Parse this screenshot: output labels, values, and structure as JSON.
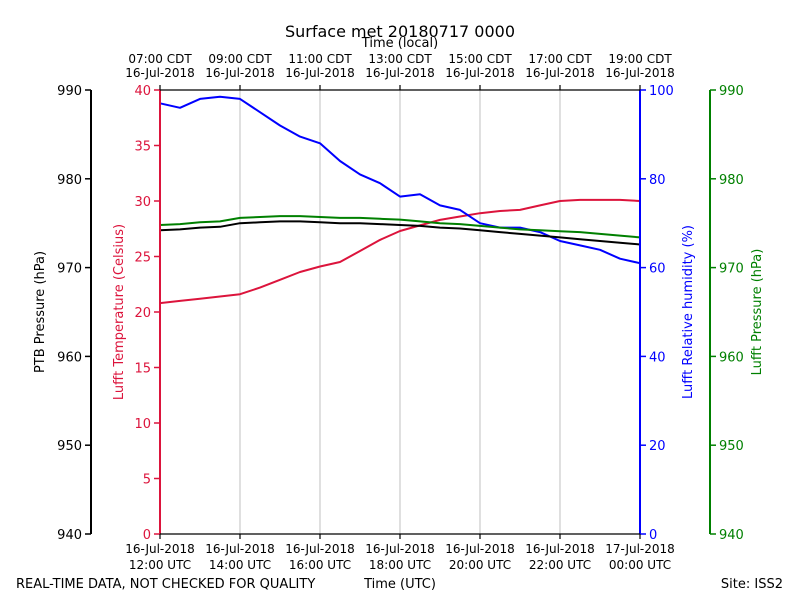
{
  "chart_data": {
    "type": "line",
    "title": "Surface met 20180717 0000",
    "top_xlabel": "Time (local)",
    "xlabel": "Time (UTC)",
    "footer_left": "REAL-TIME DATA, NOT CHECKED FOR QUALITY",
    "footer_right": "Site: ISS2",
    "xlim": [
      12,
      24
    ],
    "x_ticks_utc": [
      {
        "x": 12,
        "line1": "16-Jul-2018",
        "line2": "12:00 UTC"
      },
      {
        "x": 14,
        "line1": "16-Jul-2018",
        "line2": "14:00 UTC"
      },
      {
        "x": 16,
        "line1": "16-Jul-2018",
        "line2": "16:00 UTC"
      },
      {
        "x": 18,
        "line1": "16-Jul-2018",
        "line2": "18:00 UTC"
      },
      {
        "x": 20,
        "line1": "16-Jul-2018",
        "line2": "20:00 UTC"
      },
      {
        "x": 22,
        "line1": "16-Jul-2018",
        "line2": "22:00 UTC"
      },
      {
        "x": 24,
        "line1": "17-Jul-2018",
        "line2": "00:00 UTC"
      }
    ],
    "x_ticks_local": [
      {
        "x": 12,
        "line1": "07:00 CDT",
        "line2": "16-Jul-2018"
      },
      {
        "x": 14,
        "line1": "09:00 CDT",
        "line2": "16-Jul-2018"
      },
      {
        "x": 16,
        "line1": "11:00 CDT",
        "line2": "16-Jul-2018"
      },
      {
        "x": 18,
        "line1": "13:00 CDT",
        "line2": "16-Jul-2018"
      },
      {
        "x": 20,
        "line1": "15:00 CDT",
        "line2": "16-Jul-2018"
      },
      {
        "x": 22,
        "line1": "17:00 CDT",
        "line2": "16-Jul-2018"
      },
      {
        "x": 24,
        "line1": "19:00 CDT",
        "line2": "16-Jul-2018"
      }
    ],
    "axes": [
      {
        "id": "ptb",
        "label": "PTB Pressure (hPa)",
        "color": "#000000",
        "ylim": [
          940,
          990
        ],
        "ticks": [
          "940",
          "950",
          "960",
          "970",
          "980",
          "990"
        ]
      },
      {
        "id": "temp",
        "label": "Lufft Temperature (Celsius)",
        "color": "#dc143c",
        "ylim": [
          0,
          40
        ],
        "ticks": [
          "0",
          "5",
          "10",
          "15",
          "20",
          "25",
          "30",
          "35",
          "40"
        ]
      },
      {
        "id": "rh",
        "label": "Lufft Relative humidity (%)",
        "color": "#0000ff",
        "ylim": [
          0,
          100
        ],
        "ticks": [
          "0",
          "20",
          "40",
          "60",
          "80",
          "100"
        ]
      },
      {
        "id": "lp",
        "label": "Lufft Pressure (hPa)",
        "color": "#008000",
        "ylim": [
          940,
          990
        ],
        "ticks": [
          "940",
          "950",
          "960",
          "970",
          "980",
          "990"
        ]
      }
    ],
    "series": [
      {
        "name": "Lufft Temperature",
        "axis": "temp",
        "color": "#dc143c",
        "x": [
          12,
          12.5,
          13,
          13.5,
          14,
          14.5,
          15,
          15.5,
          16,
          16.5,
          17,
          17.5,
          18,
          18.5,
          19,
          19.5,
          20,
          20.5,
          21,
          21.5,
          22,
          22.5,
          23,
          23.5,
          24
        ],
        "values": [
          20.8,
          21.0,
          21.2,
          21.4,
          21.6,
          22.2,
          22.9,
          23.6,
          24.1,
          24.5,
          25.5,
          26.5,
          27.3,
          27.8,
          28.3,
          28.6,
          28.9,
          29.1,
          29.2,
          29.6,
          30.0,
          30.1,
          30.1,
          30.1,
          30.0
        ]
      },
      {
        "name": "Lufft Relative humidity",
        "axis": "rh",
        "color": "#0000ff",
        "x": [
          12,
          12.5,
          13,
          13.5,
          14,
          14.5,
          15,
          15.5,
          16,
          16.5,
          17,
          17.5,
          18,
          18.5,
          19,
          19.5,
          20,
          20.5,
          21,
          21.5,
          22,
          22.5,
          23,
          23.5,
          24
        ],
        "values": [
          97,
          96,
          98,
          98.5,
          98,
          95,
          92,
          89.5,
          88,
          84,
          81,
          79,
          76,
          76.5,
          74,
          73,
          70,
          69,
          69,
          68,
          66,
          65,
          64,
          62,
          61
        ]
      },
      {
        "name": "PTB Pressure",
        "axis": "ptb",
        "color": "#000000",
        "x": [
          12,
          12.5,
          13,
          13.5,
          14,
          14.5,
          15,
          15.5,
          16,
          16.5,
          17,
          17.5,
          18,
          18.5,
          19,
          19.5,
          20,
          20.5,
          21,
          21.5,
          22,
          22.5,
          23,
          23.5,
          24
        ],
        "values": [
          974.2,
          974.3,
          974.5,
          974.6,
          975.0,
          975.1,
          975.2,
          975.2,
          975.1,
          975.0,
          975.0,
          974.9,
          974.8,
          974.7,
          974.5,
          974.4,
          974.2,
          974.0,
          973.8,
          973.6,
          973.4,
          973.2,
          973.0,
          972.8,
          972.6
        ]
      },
      {
        "name": "Lufft Pressure",
        "axis": "lp",
        "color": "#008000",
        "x": [
          12,
          12.5,
          13,
          13.5,
          14,
          14.5,
          15,
          15.5,
          16,
          16.5,
          17,
          17.5,
          18,
          18.5,
          19,
          19.5,
          20,
          20.5,
          21,
          21.5,
          22,
          22.5,
          23,
          23.5,
          24
        ],
        "values": [
          974.8,
          974.9,
          975.1,
          975.2,
          975.6,
          975.7,
          975.8,
          975.8,
          975.7,
          975.6,
          975.6,
          975.5,
          975.4,
          975.2,
          975.0,
          974.9,
          974.7,
          974.5,
          974.3,
          974.2,
          974.1,
          974.0,
          973.8,
          973.6,
          973.4
        ]
      }
    ]
  }
}
